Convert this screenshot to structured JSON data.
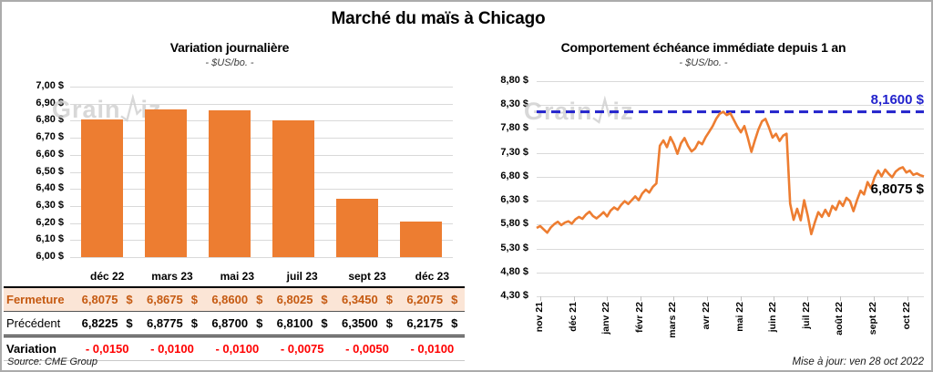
{
  "window": {
    "title": "Marché du maïs à Chicago",
    "source_note": "Source: CME Group",
    "updated_note": "Mise à jour: ven 28 oct 2022",
    "watermark_name": "GrainWiz",
    "watermark_prefix": "Grain",
    "watermark_suffix": "iz"
  },
  "colors": {
    "accent_orange": "#ED7D31",
    "close_row_bg": "#FBE5D6",
    "close_row_text": "#C55A11",
    "reference_blue": "#2222CC",
    "variation_red": "#FF0000",
    "gridline": "#D9D9D9"
  },
  "table": {
    "columns": [
      "déc 22",
      "mars 23",
      "mai 23",
      "juil 23",
      "sept 23",
      "déc 23"
    ],
    "rows": [
      {
        "label": "Fermeture",
        "style": "close",
        "values": [
          "6,8075",
          "6,8675",
          "6,8600",
          "6,8025",
          "6,3450",
          "6,2075"
        ],
        "currency": "$"
      },
      {
        "label": "Précédent",
        "style": "prev",
        "values": [
          "6,8225",
          "6,8775",
          "6,8700",
          "6,8100",
          "6,3500",
          "6,2175"
        ],
        "currency": "$"
      },
      {
        "label": "Variation",
        "style": "var",
        "values": [
          "- 0,0150",
          "- 0,0100",
          "- 0,0100",
          "- 0,0075",
          "- 0,0050",
          "- 0,0100"
        ],
        "currency": ""
      }
    ]
  },
  "chart_data": [
    {
      "type": "bar",
      "title": "Variation  journalière",
      "subtitle": "- $US/bo. -",
      "categories": [
        "déc 22",
        "mars 23",
        "mai 23",
        "juil 23",
        "sept 23",
        "déc 23"
      ],
      "values": [
        6.8075,
        6.8675,
        6.86,
        6.8025,
        6.345,
        6.2075
      ],
      "ylabel": "$US/bo.",
      "ylim": [
        6.0,
        7.0
      ],
      "ytick_step": 0.1,
      "ytick_labels": [
        "7,00 $",
        "6,90 $",
        "6,80 $",
        "6,70 $",
        "6,60 $",
        "6,50 $",
        "6,40 $",
        "6,30 $",
        "6,20 $",
        "6,10 $",
        "6,00 $"
      ],
      "grid": true,
      "bar_color": "#ED7D31"
    },
    {
      "type": "line",
      "title": "Comportement  échéance  immédiate  depuis 1 an",
      "subtitle": "- $US/bo. -",
      "ylabel": "$US/bo.",
      "ylim": [
        4.3,
        8.8
      ],
      "ytick_step": 0.5,
      "ytick_labels": [
        "8,80 $",
        "8,30 $",
        "7,80 $",
        "7,30 $",
        "6,80 $",
        "6,30 $",
        "5,80 $",
        "5,30 $",
        "4,80 $",
        "4,30 $"
      ],
      "x_labels": [
        "nov 21",
        "déc 21",
        "janv 22",
        "févr 22",
        "mars 22",
        "avr 22",
        "mai 22",
        "juin 22",
        "juil 22",
        "août 22",
        "sept 22",
        "oct 22"
      ],
      "grid": true,
      "line_color": "#ED7D31",
      "reference_line": {
        "value": 8.16,
        "label": "8,1600 $",
        "color": "#2222CC",
        "style": "dashed",
        "position": "top-right"
      },
      "last_value": 6.8075,
      "end_label": "6,8075 $",
      "values": [
        5.73,
        5.77,
        5.7,
        5.63,
        5.74,
        5.81,
        5.86,
        5.79,
        5.84,
        5.87,
        5.82,
        5.91,
        5.96,
        5.92,
        6.01,
        6.07,
        5.98,
        5.93,
        5.99,
        6.06,
        5.97,
        6.09,
        6.16,
        6.11,
        6.21,
        6.29,
        6.23,
        6.31,
        6.39,
        6.31,
        6.45,
        6.53,
        6.47,
        6.59,
        6.66,
        7.45,
        7.56,
        7.42,
        7.63,
        7.48,
        7.28,
        7.5,
        7.61,
        7.45,
        7.33,
        7.39,
        7.53,
        7.48,
        7.63,
        7.74,
        7.86,
        8.01,
        8.12,
        8.16,
        8.09,
        8.13,
        7.99,
        7.85,
        7.73,
        7.86,
        7.61,
        7.32,
        7.56,
        7.79,
        7.96,
        8.01,
        7.83,
        7.62,
        7.7,
        7.55,
        7.66,
        7.7,
        6.24,
        5.9,
        6.13,
        5.89,
        6.31,
        5.99,
        5.6,
        5.84,
        6.06,
        5.96,
        6.11,
        5.98,
        6.19,
        6.11,
        6.29,
        6.19,
        6.36,
        6.29,
        6.08,
        6.31,
        6.51,
        6.43,
        6.69,
        6.56,
        6.79,
        6.93,
        6.81,
        6.95,
        6.86,
        6.79,
        6.91,
        6.97,
        7.0,
        6.89,
        6.93,
        6.84,
        6.87,
        6.83,
        6.8075
      ]
    }
  ]
}
